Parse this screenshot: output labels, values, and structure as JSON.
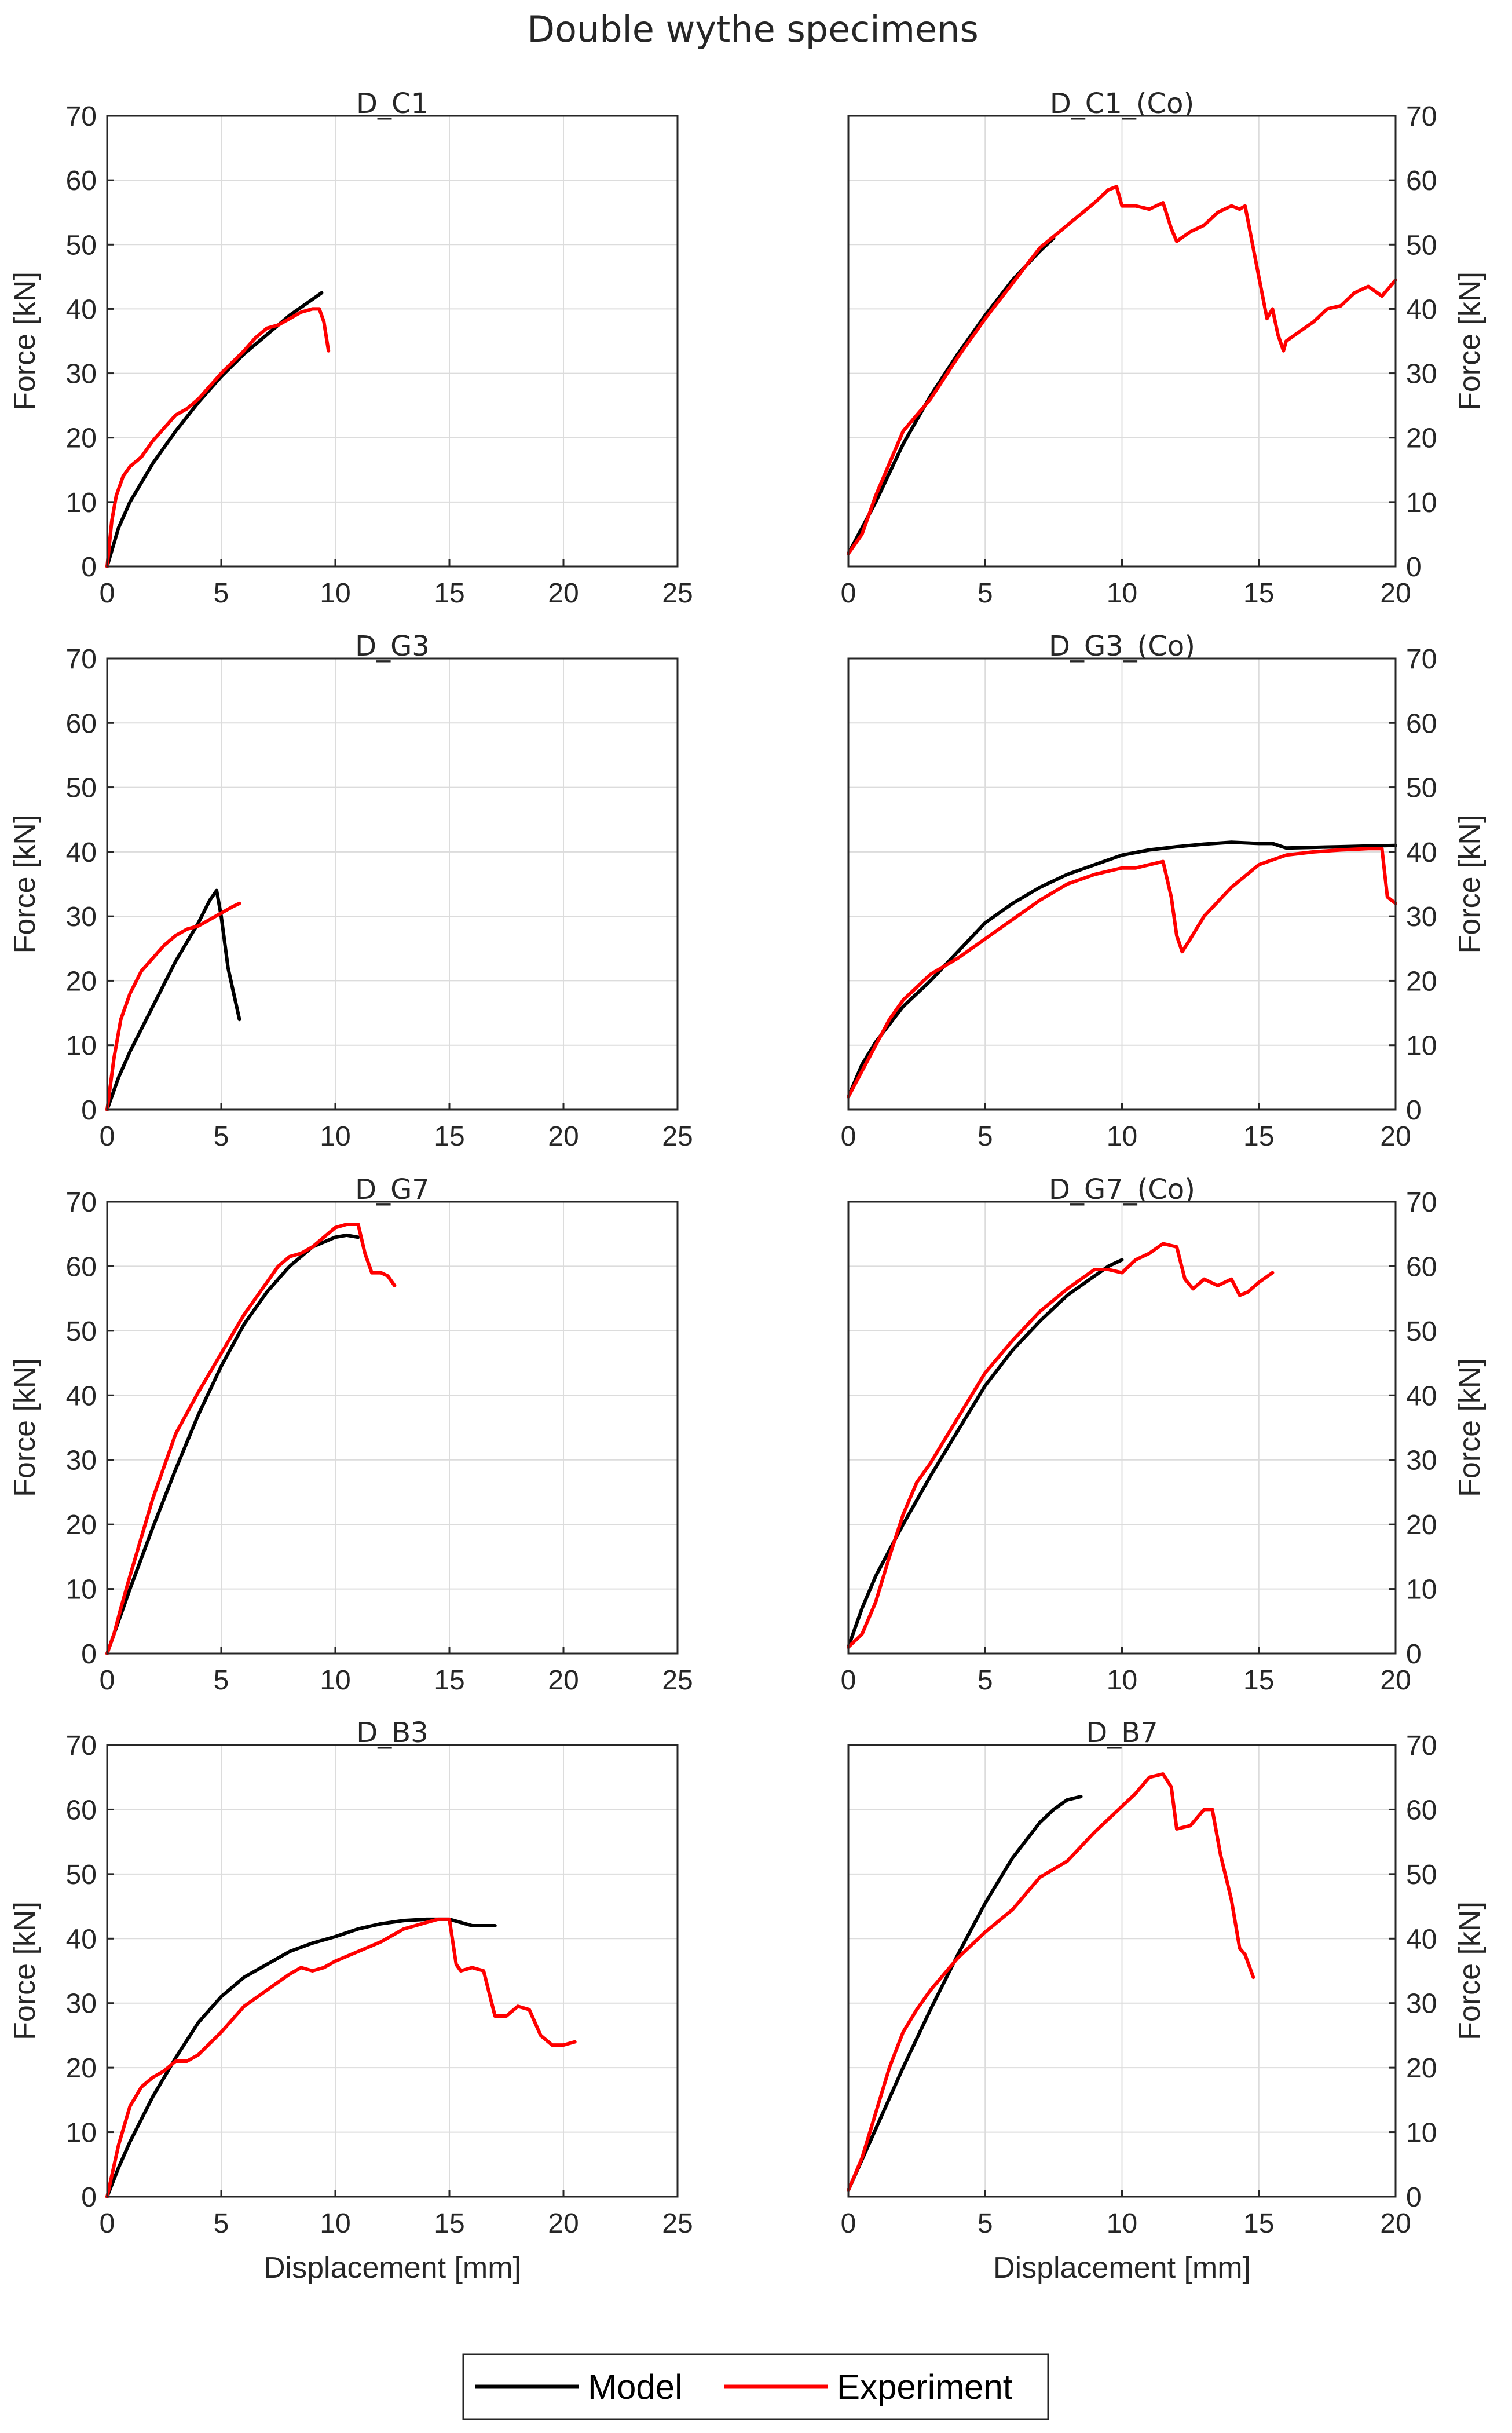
{
  "figure": {
    "title": "Double wythe specimens"
  },
  "legend": {
    "model_label": "Model",
    "experiment_label": "Experiment",
    "placement": "bottom-center"
  },
  "colors": {
    "model": "#000000",
    "experiment": "#ff0000",
    "grid": "#dcdcdc",
    "axis": "#262626"
  },
  "chart_data": [
    {
      "type": "line",
      "title": "D_C1",
      "xlabel": "",
      "ylabel": "Force [kN]",
      "yaxis_side": "left",
      "xlim": [
        0,
        25
      ],
      "ylim": [
        0,
        70
      ],
      "xticks": [
        0,
        5,
        10,
        15,
        20,
        25
      ],
      "yticks": [
        0,
        10,
        20,
        30,
        40,
        50,
        60,
        70
      ],
      "grid": true,
      "series": [
        {
          "name": "Model",
          "color": "#000000",
          "x": [
            0,
            0.5,
            1,
            2,
            3,
            4,
            5,
            6,
            7,
            8,
            9,
            9.4
          ],
          "y": [
            0,
            6,
            10,
            16,
            21,
            25.5,
            29.5,
            33,
            36,
            39,
            41.5,
            42.5
          ]
        },
        {
          "name": "Experiment",
          "color": "#ff0000",
          "x": [
            0,
            0.2,
            0.4,
            0.7,
            1,
            1.5,
            2,
            2.5,
            3,
            3.5,
            4,
            5,
            6,
            6.5,
            7,
            7.5,
            8,
            8.5,
            9,
            9.3,
            9.5,
            9.7
          ],
          "y": [
            0,
            7,
            11,
            14,
            15.5,
            17,
            19.5,
            21.5,
            23.5,
            24.5,
            26,
            30,
            33.5,
            35.5,
            37,
            37.5,
            38.5,
            39.5,
            40,
            40,
            38,
            33.5
          ]
        }
      ]
    },
    {
      "type": "line",
      "title": "D_C1_(Co)",
      "xlabel": "",
      "ylabel": "Force [kN]",
      "yaxis_side": "right",
      "xlim": [
        0,
        20
      ],
      "ylim": [
        0,
        70
      ],
      "xticks": [
        0,
        5,
        10,
        15,
        20
      ],
      "yticks": [
        0,
        10,
        20,
        30,
        40,
        50,
        60,
        70
      ],
      "grid": true,
      "series": [
        {
          "name": "Model",
          "color": "#000000",
          "x": [
            0,
            1,
            2,
            3,
            4,
            5,
            6,
            7,
            7.5
          ],
          "y": [
            2,
            10,
            19,
            26.5,
            33,
            39,
            44.5,
            49,
            51
          ]
        },
        {
          "name": "Experiment",
          "color": "#ff0000",
          "x": [
            0,
            0.5,
            1,
            1.5,
            2,
            3,
            4,
            5,
            6,
            7,
            8,
            9,
            9.5,
            9.8,
            10,
            10.5,
            11,
            11.5,
            11.8,
            12,
            12.5,
            13,
            13.5,
            14,
            14.3,
            14.5,
            15,
            15.3,
            15.5,
            15.7,
            15.9,
            16,
            16.5,
            17,
            17.5,
            18,
            18.5,
            19,
            19.5,
            20
          ],
          "y": [
            2,
            5,
            11,
            16,
            21,
            26,
            32.5,
            38.5,
            44,
            49.5,
            53,
            56.5,
            58.5,
            59,
            56,
            56,
            55.5,
            56.5,
            52.5,
            50.5,
            52,
            53,
            55,
            56,
            55.5,
            56,
            45,
            38.5,
            40,
            36,
            33.5,
            35,
            36.5,
            38,
            40,
            40.5,
            42.5,
            43.5,
            42,
            44.5
          ]
        }
      ]
    },
    {
      "type": "line",
      "title": "D_G3",
      "xlabel": "",
      "ylabel": "Force [kN]",
      "yaxis_side": "left",
      "xlim": [
        0,
        25
      ],
      "ylim": [
        0,
        70
      ],
      "xticks": [
        0,
        5,
        10,
        15,
        20,
        25
      ],
      "yticks": [
        0,
        10,
        20,
        30,
        40,
        50,
        60,
        70
      ],
      "grid": true,
      "series": [
        {
          "name": "Model",
          "color": "#000000",
          "x": [
            0,
            0.5,
            1,
            2,
            3,
            4,
            4.5,
            4.8,
            5,
            5.3,
            5.8
          ],
          "y": [
            0,
            5,
            9,
            16,
            23,
            29,
            32.5,
            34,
            30,
            22,
            14
          ]
        },
        {
          "name": "Experiment",
          "color": "#ff0000",
          "x": [
            0,
            0.3,
            0.6,
            1,
            1.5,
            2,
            2.5,
            3,
            3.5,
            4,
            4.5,
            5,
            5.5,
            5.8
          ],
          "y": [
            0,
            8,
            14,
            18,
            21.5,
            23.5,
            25.5,
            27,
            28,
            28.5,
            29.5,
            30.5,
            31.5,
            32
          ]
        }
      ]
    },
    {
      "type": "line",
      "title": "D_G3_(Co)",
      "xlabel": "",
      "ylabel": "Force [kN]",
      "yaxis_side": "right",
      "xlim": [
        0,
        20
      ],
      "ylim": [
        0,
        70
      ],
      "xticks": [
        0,
        5,
        10,
        15,
        20
      ],
      "yticks": [
        0,
        10,
        20,
        30,
        40,
        50,
        60,
        70
      ],
      "grid": true,
      "series": [
        {
          "name": "Model",
          "color": "#000000",
          "x": [
            0,
            0.5,
            1,
            2,
            3,
            4,
            5,
            6,
            7,
            8,
            9,
            10,
            11,
            12,
            13,
            14,
            15,
            15.5,
            16,
            17,
            18,
            19,
            20
          ],
          "y": [
            2,
            7,
            10.5,
            16,
            20,
            24.5,
            29,
            32,
            34.5,
            36.5,
            38,
            39.5,
            40.3,
            40.8,
            41.2,
            41.5,
            41.3,
            41.3,
            40.6,
            40.7,
            40.8,
            40.9,
            41
          ]
        },
        {
          "name": "Experiment",
          "color": "#ff0000",
          "x": [
            0,
            0.5,
            1,
            1.5,
            2,
            3,
            4,
            5,
            6,
            7,
            8,
            9,
            10,
            10.5,
            11,
            11.5,
            11.8,
            12,
            12.2,
            12.5,
            13,
            14,
            15,
            16,
            17,
            18,
            19,
            19.5,
            19.7,
            20
          ],
          "y": [
            2,
            6,
            10,
            14,
            17,
            21,
            23.5,
            26.5,
            29.5,
            32.5,
            35,
            36.5,
            37.5,
            37.5,
            38,
            38.5,
            33,
            27,
            24.5,
            26.5,
            30,
            34.5,
            38,
            39.5,
            40,
            40.3,
            40.5,
            40.5,
            33,
            32
          ]
        }
      ]
    },
    {
      "type": "line",
      "title": "D_G7",
      "xlabel": "",
      "ylabel": "Force [kN]",
      "yaxis_side": "left",
      "xlim": [
        0,
        25
      ],
      "ylim": [
        0,
        70
      ],
      "xticks": [
        0,
        5,
        10,
        15,
        20,
        25
      ],
      "yticks": [
        0,
        10,
        20,
        30,
        40,
        50,
        60,
        70
      ],
      "grid": true,
      "series": [
        {
          "name": "Model",
          "color": "#000000",
          "x": [
            0,
            1,
            2,
            3,
            4,
            5,
            6,
            7,
            8,
            9,
            10,
            10.5,
            11
          ],
          "y": [
            0,
            10,
            19.5,
            28.5,
            37,
            44.5,
            51,
            56,
            60,
            63,
            64.5,
            64.8,
            64.5
          ]
        },
        {
          "name": "Experiment",
          "color": "#ff0000",
          "x": [
            0,
            0.3,
            0.6,
            1,
            1.5,
            2,
            3,
            4,
            5,
            6,
            7,
            7.5,
            8,
            8.5,
            9,
            9.5,
            10,
            10.5,
            11,
            11.3,
            11.6,
            12,
            12.3,
            12.6
          ],
          "y": [
            0,
            3,
            7,
            12,
            18,
            24,
            34,
            40.5,
            46.5,
            52.5,
            57.5,
            60,
            61.5,
            62,
            63,
            64.5,
            66,
            66.5,
            66.5,
            62,
            59,
            59,
            58.5,
            57
          ]
        }
      ]
    },
    {
      "type": "line",
      "title": "D_G7_(Co)",
      "xlabel": "",
      "ylabel": "Force [kN]",
      "yaxis_side": "right",
      "xlim": [
        0,
        20
      ],
      "ylim": [
        0,
        70
      ],
      "xticks": [
        0,
        5,
        10,
        15,
        20
      ],
      "yticks": [
        0,
        10,
        20,
        30,
        40,
        50,
        60,
        70
      ],
      "grid": true,
      "series": [
        {
          "name": "Model",
          "color": "#000000",
          "x": [
            0,
            0.5,
            1,
            2,
            3,
            4,
            5,
            6,
            7,
            8,
            9,
            9.5,
            10
          ],
          "y": [
            1,
            7,
            12,
            20,
            27.5,
            34.5,
            41.5,
            47,
            51.5,
            55.5,
            58.5,
            60,
            61
          ]
        },
        {
          "name": "Experiment",
          "color": "#ff0000",
          "x": [
            0,
            0.5,
            1,
            1.5,
            2,
            2.5,
            3,
            4,
            5,
            6,
            7,
            8,
            9,
            9.5,
            10,
            10.5,
            11,
            11.5,
            12,
            12.3,
            12.6,
            13,
            13.5,
            14,
            14.3,
            14.6,
            15,
            15.5
          ],
          "y": [
            1,
            3,
            8,
            15,
            21.5,
            26.5,
            29.5,
            36.5,
            43.5,
            48.5,
            53,
            56.5,
            59.5,
            59.5,
            59,
            61,
            62,
            63.5,
            63,
            58,
            56.5,
            58,
            57,
            58,
            55.5,
            56,
            57.5,
            59
          ]
        }
      ]
    },
    {
      "type": "line",
      "title": "D_B3",
      "xlabel": "Displacement [mm]",
      "ylabel": "Force [kN]",
      "yaxis_side": "left",
      "xlim": [
        0,
        25
      ],
      "ylim": [
        0,
        70
      ],
      "xticks": [
        0,
        5,
        10,
        15,
        20,
        25
      ],
      "yticks": [
        0,
        10,
        20,
        30,
        40,
        50,
        60,
        70
      ],
      "grid": true,
      "series": [
        {
          "name": "Model",
          "color": "#000000",
          "x": [
            0,
            0.5,
            1,
            2,
            3,
            4,
            5,
            6,
            7,
            8,
            9,
            10,
            11,
            12,
            13,
            14,
            15,
            16,
            17
          ],
          "y": [
            0,
            4.5,
            8.5,
            15.5,
            21.5,
            27,
            31,
            34,
            36,
            38,
            39.3,
            40.3,
            41.5,
            42.3,
            42.8,
            43,
            43,
            42,
            42
          ]
        },
        {
          "name": "Experiment",
          "color": "#ff0000",
          "x": [
            0,
            0.5,
            1,
            1.5,
            2,
            2.5,
            3,
            3.5,
            4,
            5,
            6,
            7,
            8,
            8.5,
            9,
            9.5,
            10,
            11,
            12,
            13,
            14,
            14.5,
            15,
            15.3,
            15.5,
            16,
            16.5,
            17,
            17.5,
            18,
            18.5,
            19,
            19.5,
            20,
            20.5
          ],
          "y": [
            0,
            8,
            14,
            17,
            18.5,
            19.5,
            21,
            21,
            22,
            25.5,
            29.5,
            32,
            34.5,
            35.5,
            35,
            35.5,
            36.5,
            38,
            39.5,
            41.5,
            42.5,
            43,
            43,
            36,
            35,
            35.5,
            35,
            28,
            28,
            29.5,
            29,
            25,
            23.5,
            23.5,
            24
          ]
        }
      ]
    },
    {
      "type": "line",
      "title": "D_B7",
      "xlabel": "Displacement [mm]",
      "ylabel": "Force [kN]",
      "yaxis_side": "right",
      "xlim": [
        0,
        20
      ],
      "ylim": [
        0,
        70
      ],
      "xticks": [
        0,
        5,
        10,
        15,
        20
      ],
      "yticks": [
        0,
        10,
        20,
        30,
        40,
        50,
        60,
        70
      ],
      "grid": true,
      "series": [
        {
          "name": "Model",
          "color": "#000000",
          "x": [
            0,
            1,
            2,
            3,
            4,
            5,
            6,
            7,
            7.5,
            8,
            8.5
          ],
          "y": [
            1,
            10.5,
            20,
            29,
            37.5,
            45.5,
            52.5,
            58,
            60,
            61.5,
            62
          ]
        },
        {
          "name": "Experiment",
          "color": "#ff0000",
          "x": [
            0,
            0.5,
            1,
            1.5,
            2,
            2.5,
            3,
            4,
            5,
            6,
            7,
            8,
            9,
            10,
            10.5,
            11,
            11.5,
            11.8,
            12,
            12.5,
            13,
            13.3,
            13.6,
            14,
            14.3,
            14.5,
            14.8
          ],
          "y": [
            1,
            6,
            13,
            20,
            25.5,
            29,
            32,
            37,
            41,
            44.5,
            49.5,
            52,
            56.5,
            60.5,
            62.5,
            65,
            65.5,
            63.5,
            57,
            57.5,
            60,
            60,
            53,
            46,
            38.5,
            37.5,
            34
          ]
        }
      ]
    }
  ]
}
